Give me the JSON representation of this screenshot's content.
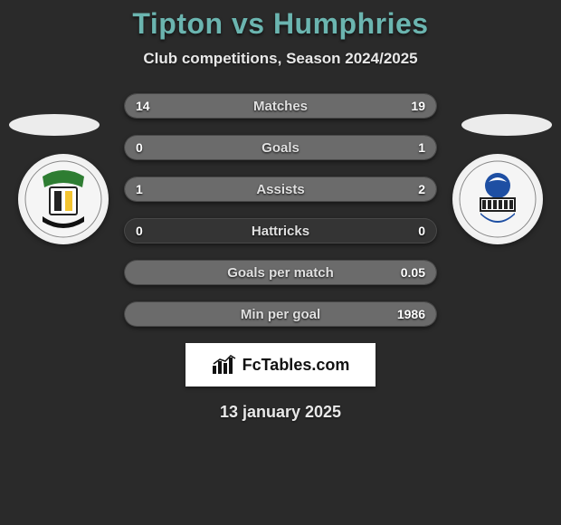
{
  "title": "Tipton vs Humphries",
  "subtitle": "Club competitions, Season 2024/2025",
  "date": "13 january 2025",
  "brand": "FcTables.com",
  "title_color": "#6bb5b0",
  "bg_color": "#2a2a2a",
  "track_color": "rgba(255,255,255,0.05)",
  "fill_left_color": "#6b6b6b",
  "fill_right_color": "#6b6b6b",
  "badge_left": {
    "ring": "#e0e0e0",
    "accent_top": "#2e7d32",
    "accent_mid": "#f4c430"
  },
  "badge_right": {
    "ring": "#e0e0e0",
    "accent": "#1e4fa3"
  },
  "stats": [
    {
      "label": "Matches",
      "left_val": "14",
      "right_val": "19",
      "left_pct": 42,
      "right_pct": 58
    },
    {
      "label": "Goals",
      "left_val": "0",
      "right_val": "1",
      "left_pct": 0,
      "right_pct": 100
    },
    {
      "label": "Assists",
      "left_val": "1",
      "right_val": "2",
      "left_pct": 33,
      "right_pct": 67
    },
    {
      "label": "Hattricks",
      "left_val": "0",
      "right_val": "0",
      "left_pct": 0,
      "right_pct": 0
    },
    {
      "label": "Goals per match",
      "left_val": "",
      "right_val": "0.05",
      "left_pct": 0,
      "right_pct": 100
    },
    {
      "label": "Min per goal",
      "left_val": "",
      "right_val": "1986",
      "left_pct": 0,
      "right_pct": 100
    }
  ]
}
